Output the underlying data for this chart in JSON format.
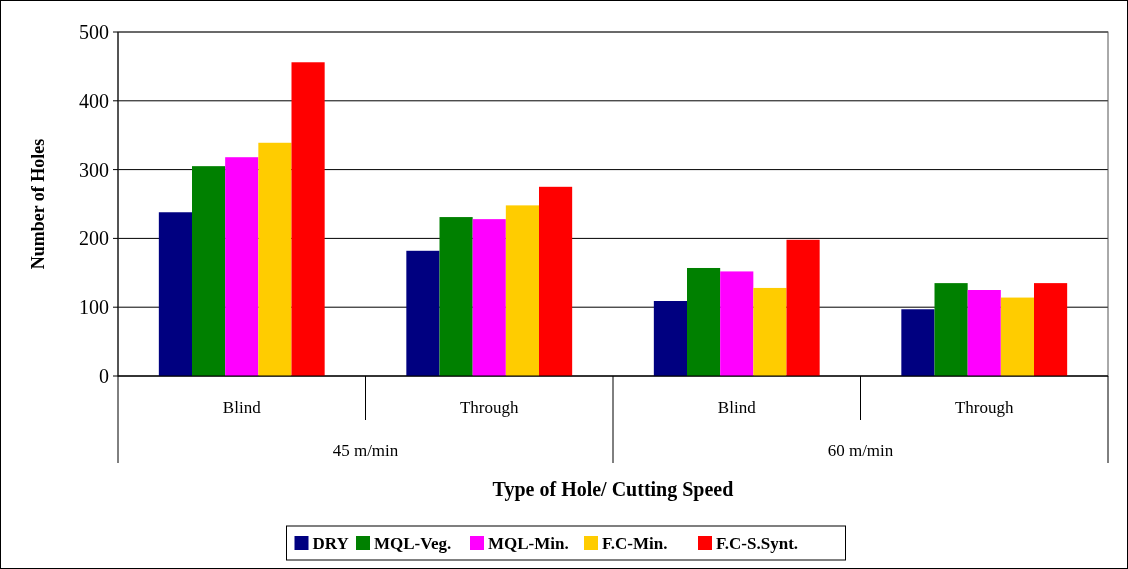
{
  "chart_data": {
    "type": "bar",
    "xlabel": "Type of Hole/ Cutting Speed",
    "ylabel": "Number of Holes",
    "categories": [
      "Blind",
      "Through",
      "Blind",
      "Through"
    ],
    "annotations": [
      "45 m/min",
      "60 m/min"
    ],
    "series": [
      {
        "name": "DRY",
        "color": "#000080",
        "values": [
          238,
          182,
          109,
          97
        ]
      },
      {
        "name": "MQL-Veg.",
        "color": "#008000",
        "values": [
          305,
          231,
          157,
          135
        ]
      },
      {
        "name": "MQL-Min.",
        "color": "#ff00ff",
        "values": [
          318,
          228,
          152,
          125
        ]
      },
      {
        "name": "F.C-Min.",
        "color": "#ffcc00",
        "values": [
          339,
          248,
          128,
          114
        ]
      },
      {
        "name": "F.C-S.Synt.",
        "color": "#ff0000",
        "values": [
          456,
          275,
          198,
          135
        ]
      }
    ],
    "ylim": [
      0,
      500
    ],
    "yticks": [
      0,
      100,
      200,
      300,
      400,
      500
    ],
    "grid": "y",
    "legend": "bottom"
  }
}
